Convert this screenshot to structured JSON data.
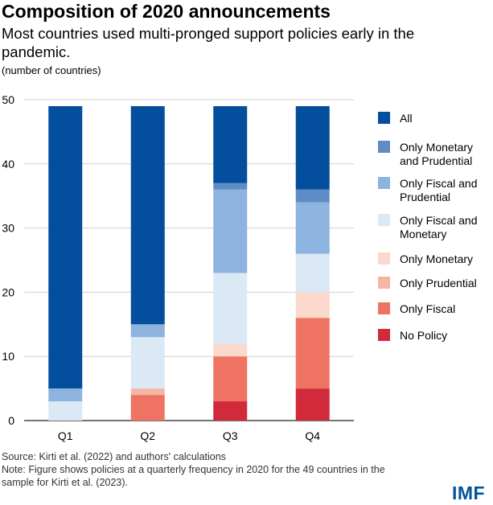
{
  "header": {
    "title": "Composition of 2020 announcements",
    "subtitle": "Most countries used multi-pronged support policies early in the pandemic.",
    "units": "(number of countries)"
  },
  "footer": {
    "source": "Source: Kirti et al. (2022) and authors' calculations",
    "note": "Note: Figure shows policies at a quarterly frequency in 2020 for the 49 countries in the sample for Kirti et al. (2023)."
  },
  "brand": {
    "logo_text": "IMF",
    "logo_color": "#00539b"
  },
  "chart_data": {
    "type": "bar",
    "stacked": true,
    "categories": [
      "Q1",
      "Q2",
      "Q3",
      "Q4"
    ],
    "ylim": [
      0,
      50
    ],
    "yticks": [
      0,
      10,
      20,
      30,
      40,
      50
    ],
    "grid": true,
    "legend_position": "right",
    "series": [
      {
        "name": "No Policy",
        "color": "#d12a3a",
        "values": [
          0,
          0,
          3,
          5
        ]
      },
      {
        "name": "Only Fiscal",
        "color": "#ef7363",
        "values": [
          0,
          4,
          7,
          11
        ]
      },
      {
        "name": "Only Prudential",
        "color": "#f6b6a6",
        "values": [
          0,
          1,
          0,
          0
        ]
      },
      {
        "name": "Only Monetary",
        "color": "#fbd9cc",
        "values": [
          0,
          0,
          2,
          4
        ]
      },
      {
        "name": "Only Fiscal and Monetary",
        "color": "#dbe8f5",
        "values": [
          3,
          8,
          11,
          6
        ]
      },
      {
        "name": "Only Fiscal and Prudential",
        "color": "#8cb4de",
        "values": [
          2,
          2,
          13,
          8
        ]
      },
      {
        "name": "Only Monetary and Prudential",
        "color": "#5d8dc4",
        "values": [
          0,
          0,
          1,
          2
        ]
      },
      {
        "name": "All",
        "color": "#034e9d",
        "values": [
          44,
          34,
          12,
          13
        ]
      }
    ],
    "legend": [
      {
        "lines": [
          "All"
        ],
        "color": "#034e9d"
      },
      {
        "lines": [
          "Only Monetary",
          "and Prudential"
        ],
        "color": "#5d8dc4"
      },
      {
        "lines": [
          "Only Fiscal and",
          "Prudential"
        ],
        "color": "#8cb4de"
      },
      {
        "lines": [
          "Only Fiscal and",
          "Monetary"
        ],
        "color": "#dbe8f5"
      },
      {
        "lines": [
          "Only Monetary"
        ],
        "color": "#fbd9cc"
      },
      {
        "lines": [
          "Only Prudential"
        ],
        "color": "#f6b6a6"
      },
      {
        "lines": [
          "Only Fiscal"
        ],
        "color": "#ef7363"
      },
      {
        "lines": [
          "No Policy"
        ],
        "color": "#d12a3a"
      }
    ]
  }
}
